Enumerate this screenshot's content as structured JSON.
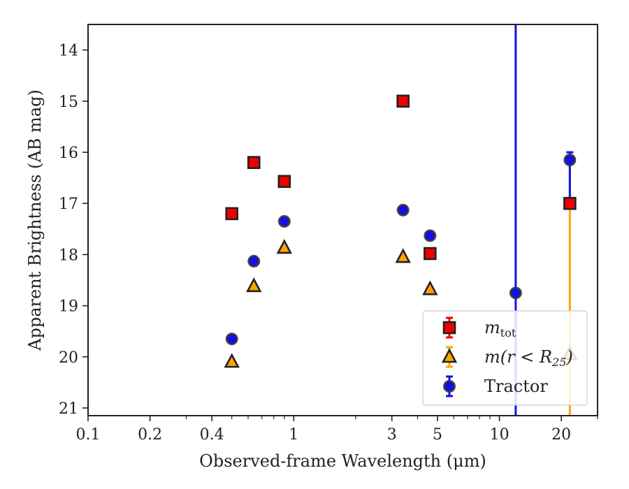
{
  "chart_data": {
    "type": "scatter",
    "xlabel": "Observed-frame Wavelength (μm)",
    "ylabel": "Apparent Brightness (AB mag)",
    "xscale": "log",
    "xlim": [
      0.1,
      30
    ],
    "ylim": [
      21.15,
      13.5
    ],
    "y_inverted": true,
    "xticks": [
      0.1,
      0.2,
      0.4,
      1,
      3,
      5,
      10,
      20
    ],
    "xtick_labels": [
      "0.1",
      "0.2",
      "0.4",
      "1",
      "3",
      "5",
      "10",
      "20"
    ],
    "yticks": [
      14,
      15,
      16,
      17,
      18,
      19,
      20,
      21
    ],
    "ytick_labels": [
      "14",
      "15",
      "16",
      "17",
      "18",
      "19",
      "20",
      "21"
    ],
    "grid": false,
    "legend_position": "lower-right",
    "series": [
      {
        "name": "m_tot",
        "legend_label": "m",
        "legend_sub": "tot",
        "marker": "square",
        "color": "#ee0000",
        "x": [
          0.5,
          0.64,
          0.9,
          3.4,
          4.6,
          22
        ],
        "y": [
          17.2,
          16.2,
          16.57,
          15.0,
          17.98,
          17.0
        ]
      },
      {
        "name": "m(r<R25)",
        "legend_label": "m(r < R",
        "legend_sub": "25",
        "legend_tail": ")",
        "marker": "triangle",
        "color": "#ffa500",
        "x": [
          0.5,
          0.64,
          0.9,
          3.4,
          4.6,
          22
        ],
        "y": [
          20.1,
          18.62,
          17.87,
          18.05,
          18.68,
          19.95
        ],
        "errors": [
          null,
          null,
          null,
          null,
          null,
          {
            "lo": 16.0,
            "hi": 21.2
          }
        ]
      },
      {
        "name": "Tractor",
        "legend_label": "Tractor",
        "marker": "circle",
        "color": "#1010ee",
        "x": [
          0.5,
          0.64,
          0.9,
          3.4,
          4.6,
          12,
          22
        ],
        "y": [
          19.65,
          18.13,
          17.35,
          17.13,
          17.63,
          18.75,
          16.15
        ],
        "errors": [
          null,
          null,
          null,
          null,
          null,
          {
            "lo": 13.5,
            "hi": 21.2
          },
          {
            "lo": 16.0,
            "hi": 17.0
          }
        ]
      }
    ]
  }
}
